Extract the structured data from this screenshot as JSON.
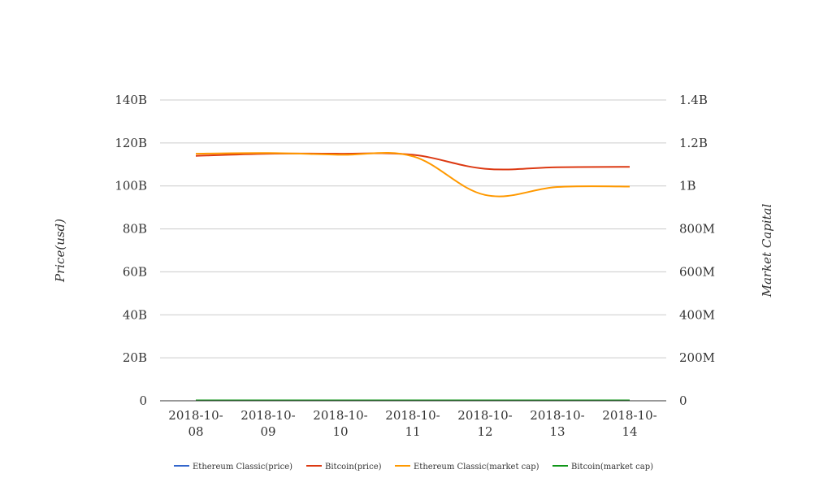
{
  "chart_data": {
    "type": "line",
    "x": [
      "2018-10-08",
      "2018-10-09",
      "2018-10-10",
      "2018-10-11",
      "2018-10-12",
      "2018-10-13",
      "2018-10-14"
    ],
    "x_tick_lines": [
      [
        "2018-10-",
        "08"
      ],
      [
        "2018-10-",
        "09"
      ],
      [
        "2018-10-",
        "10"
      ],
      [
        "2018-10-",
        "11"
      ],
      [
        "2018-10-",
        "12"
      ],
      [
        "2018-10-",
        "13"
      ],
      [
        "2018-10-",
        "14"
      ]
    ],
    "ylabel_left": "Price(usd)",
    "ylabel_right": "Market Capital",
    "ylim_left": [
      0,
      140000000000
    ],
    "ylim_right": [
      0,
      1400000000
    ],
    "yticks_left": [
      "0",
      "20B",
      "40B",
      "60B",
      "80B",
      "100B",
      "120B",
      "140B"
    ],
    "yticks_right": [
      "0",
      "200M",
      "400M",
      "600M",
      "800M",
      "1B",
      "1.2B",
      "1.4B"
    ],
    "grid": true,
    "legend_position": "bottom",
    "series": [
      {
        "name": "Ethereum Classic(price)",
        "axis": "left",
        "color": "#3366cc",
        "values": [
          10,
          10,
          10,
          10,
          9,
          9,
          9
        ]
      },
      {
        "name": "Bitcoin(price)",
        "axis": "left",
        "color": "#dc3912",
        "values": [
          114000000000,
          115000000000,
          115000000000,
          114500000000,
          108000000000,
          108700000000,
          108900000000
        ]
      },
      {
        "name": "Ethereum Classic(market cap)",
        "axis": "right",
        "color": "#ff9900",
        "values": [
          1150000000,
          1153000000,
          1145000000,
          1138000000,
          958000000,
          995000000,
          997000000
        ]
      },
      {
        "name": "Bitcoin(market cap)",
        "axis": "right",
        "color": "#109618",
        "values": [
          1000,
          1000,
          1000,
          1000,
          1000,
          1000,
          1000
        ]
      }
    ]
  }
}
